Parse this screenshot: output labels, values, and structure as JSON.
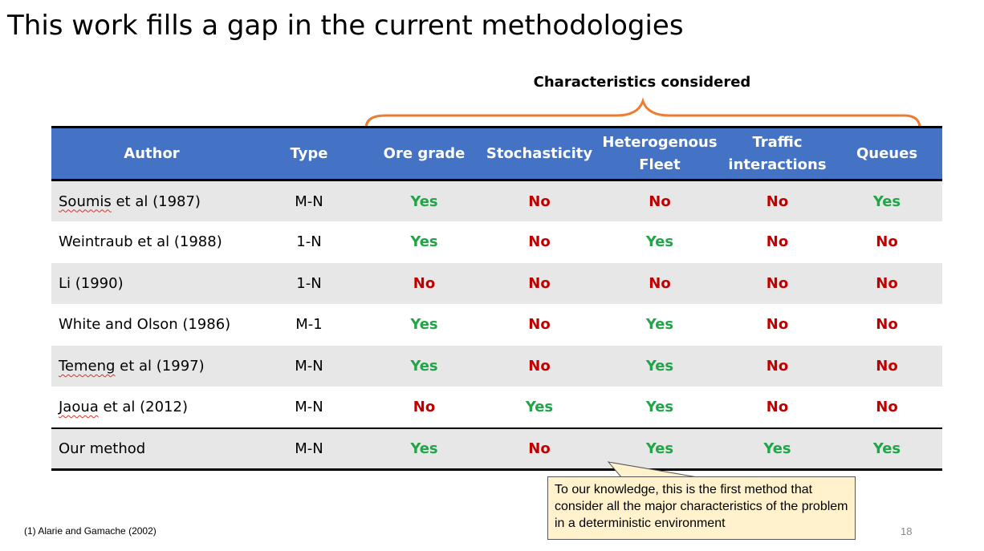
{
  "slide": {
    "title": "This work fills a gap in the current methodologies",
    "characteristics_label": "Characteristics considered",
    "footnote": "(1) Alarie and Gamache (2002)",
    "page_number": "18",
    "callout": "To our knowledge, this is the first method that consider all the major characteristics of the problem in a deterministic environment"
  },
  "colors": {
    "header_bg": "#4472c4",
    "yes": "#22a548",
    "no": "#c00000",
    "brace": "#ed7d31",
    "callout_bg": "#fff2cc",
    "row_shade": "#e7e7e7"
  },
  "table": {
    "headers": [
      [
        "Author"
      ],
      [
        "Type"
      ],
      [
        "Ore grade"
      ],
      [
        "Stochasticity"
      ],
      [
        "Heterogenous",
        "Fleet"
      ],
      [
        "Traffic",
        "interactions"
      ],
      [
        "Queues"
      ]
    ],
    "rows": [
      {
        "author": "Soumis et al (1987)",
        "squiggle": "Soumis",
        "rest": " et al (1987)",
        "type": "M-N",
        "values": [
          "Yes",
          "No",
          "No",
          "No",
          "Yes"
        ]
      },
      {
        "author": "Weintraub et al (1988)",
        "type": "1-N",
        "values": [
          "Yes",
          "No",
          "Yes",
          "No",
          "No"
        ]
      },
      {
        "author": "Li (1990)",
        "type": "1-N",
        "values": [
          "No",
          "No",
          "No",
          "No",
          "No"
        ]
      },
      {
        "author": "White and Olson (1986)",
        "type": "M-1",
        "values": [
          "Yes",
          "No",
          "Yes",
          "No",
          "No"
        ]
      },
      {
        "author": "Temeng et al (1997)",
        "squiggle": "Temeng",
        "rest": " et al (1997)",
        "type": "M-N",
        "values": [
          "Yes",
          "No",
          "Yes",
          "No",
          "No"
        ]
      },
      {
        "author": "Jaoua et al (2012)",
        "squiggle": "Jaoua",
        "rest": " et al (2012)",
        "type": "M-N",
        "values": [
          "No",
          "Yes",
          "Yes",
          "No",
          "No"
        ]
      },
      {
        "author": "Our method",
        "type": "M-N",
        "values": [
          "Yes",
          "No",
          "Yes",
          "Yes",
          "Yes"
        ]
      }
    ]
  }
}
